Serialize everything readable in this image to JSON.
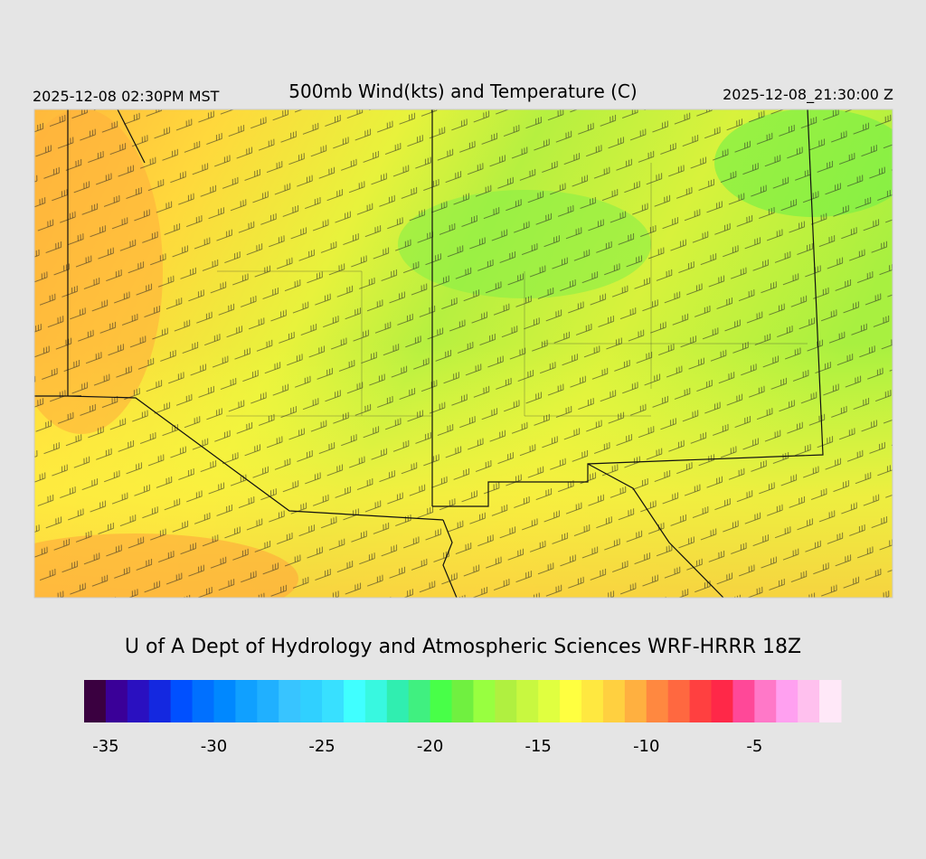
{
  "header": {
    "left": "2025-12-08 02:30PM MST",
    "title": "500mb Wind(kts) and Temperature (C)",
    "right": "2025-12-08_21:30:00 Z"
  },
  "footer": {
    "credit": "U of A Dept of Hydrology and Atmospheric Sciences WRF-HRRR 18Z"
  },
  "colorbar": {
    "lim": [
      -36,
      -1
    ],
    "ticks": [
      -35,
      -30,
      -25,
      -20,
      -15,
      -10,
      -5
    ],
    "colors": [
      "#3a0040",
      "#3a0098",
      "#2a10c0",
      "#1428e0",
      "#0050ff",
      "#0070ff",
      "#0088ff",
      "#10a0ff",
      "#20b0ff",
      "#38c4ff",
      "#30d0ff",
      "#38e0ff",
      "#40ffff",
      "#38f8e0",
      "#30eeb0",
      "#40f080",
      "#48ff48",
      "#70f040",
      "#98ff40",
      "#b0f040",
      "#c8f840",
      "#e0ff40",
      "#ffff40",
      "#ffe840",
      "#ffd040",
      "#ffb040",
      "#ff8840",
      "#ff6840",
      "#ff4040",
      "#ff2848",
      "#ff4898",
      "#ff78c8",
      "#ffa0f0",
      "#ffc0ee",
      "#ffe8f8"
    ]
  }
}
